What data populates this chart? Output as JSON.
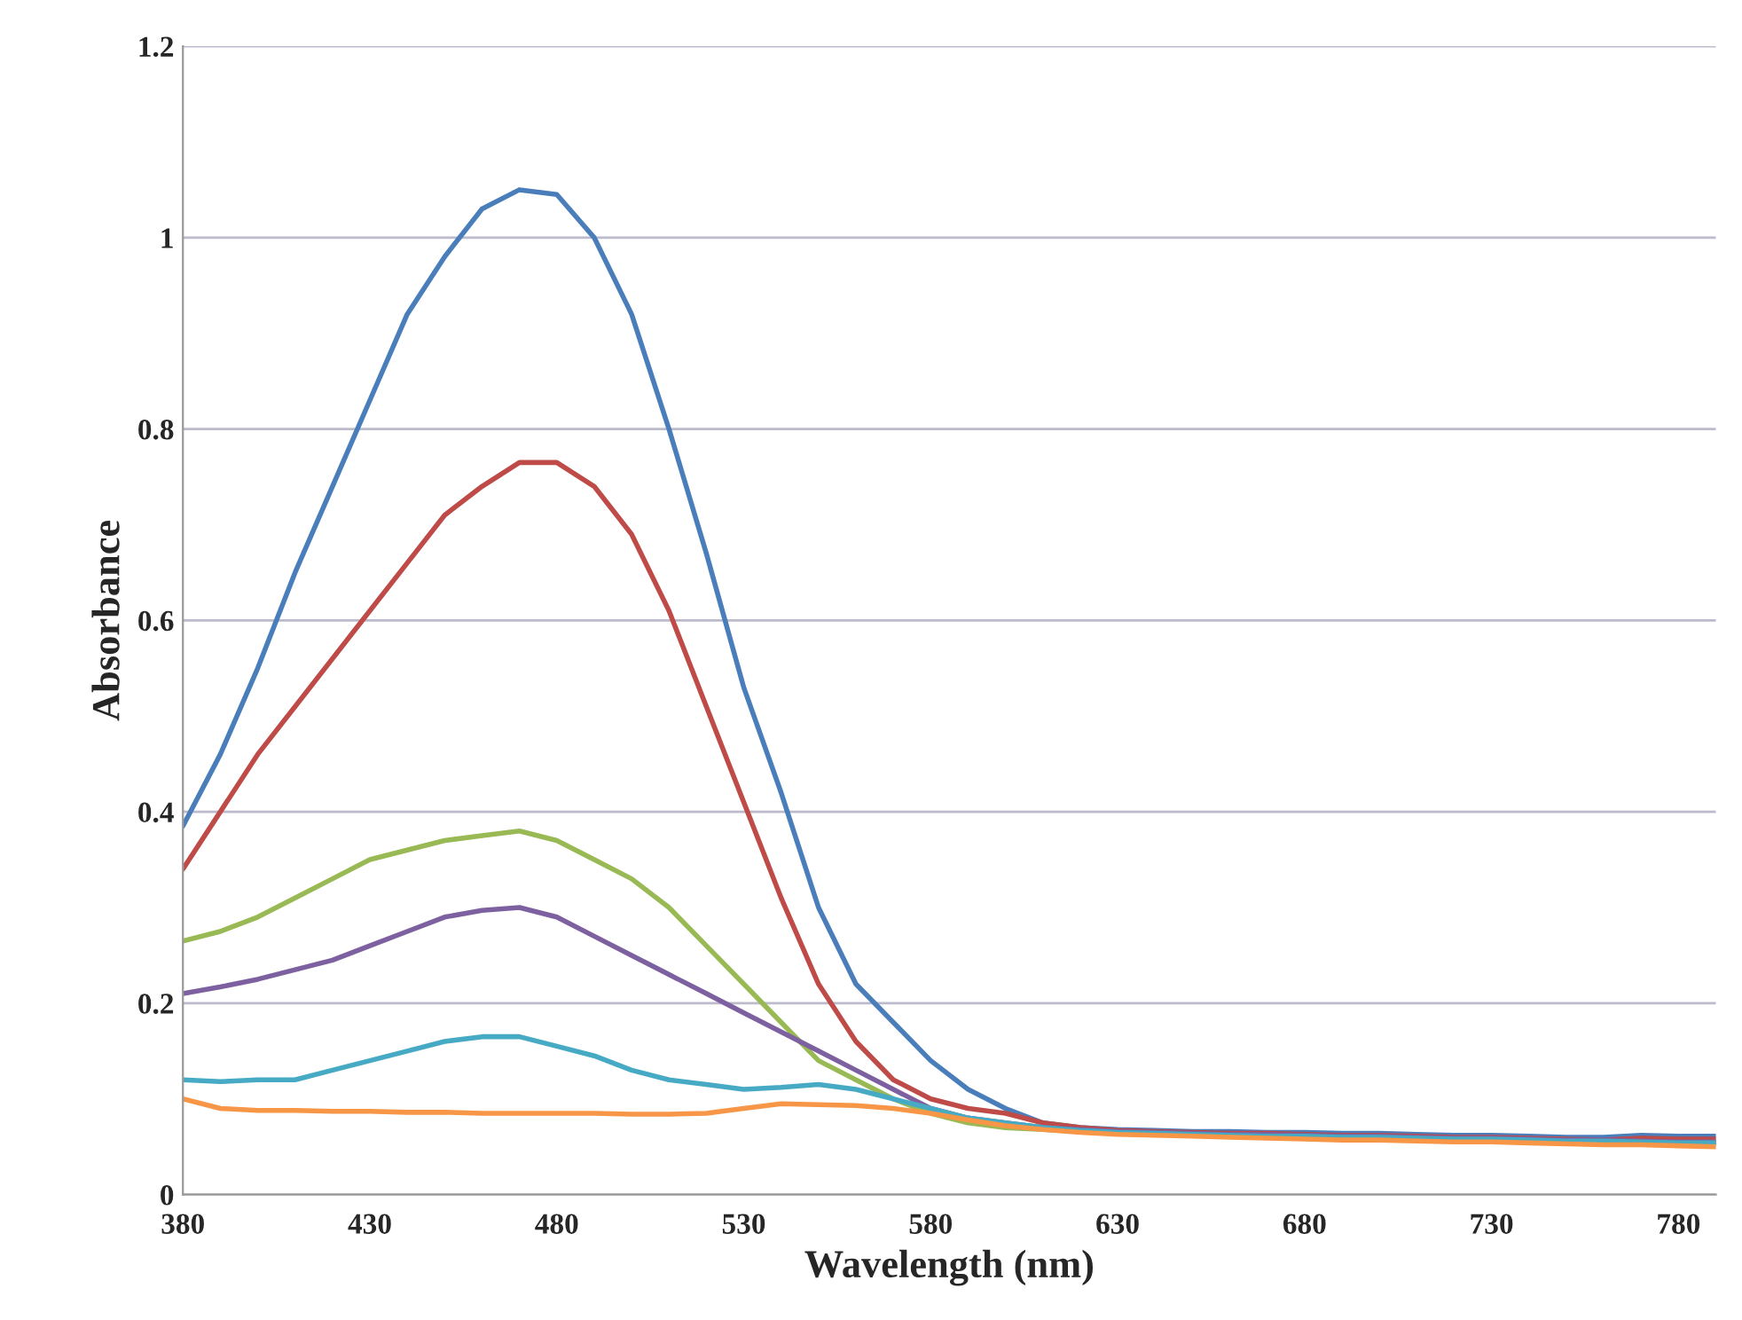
{
  "chart_data": {
    "type": "line",
    "xlabel": "Wavelength (nm)",
    "ylabel": "Absorbance",
    "x": [
      380,
      390,
      400,
      410,
      420,
      430,
      440,
      450,
      460,
      470,
      480,
      490,
      500,
      510,
      520,
      530,
      540,
      550,
      560,
      570,
      580,
      590,
      600,
      610,
      620,
      630,
      640,
      650,
      660,
      670,
      680,
      690,
      700,
      710,
      720,
      730,
      740,
      750,
      760,
      770,
      780,
      790
    ],
    "series": [
      {
        "color": "#4a7ebb",
        "values": [
          0.385,
          0.46,
          0.55,
          0.65,
          0.74,
          0.83,
          0.92,
          0.98,
          1.03,
          1.05,
          1.045,
          1.0,
          0.92,
          0.8,
          0.67,
          0.53,
          0.42,
          0.3,
          0.22,
          0.18,
          0.14,
          0.11,
          0.09,
          0.075,
          0.07,
          0.068,
          0.067,
          0.066,
          0.066,
          0.065,
          0.065,
          0.064,
          0.064,
          0.063,
          0.062,
          0.062,
          0.061,
          0.06,
          0.06,
          0.062,
          0.061,
          0.061
        ]
      },
      {
        "color": "#be4b48",
        "values": [
          0.34,
          0.4,
          0.46,
          0.51,
          0.56,
          0.61,
          0.66,
          0.71,
          0.74,
          0.765,
          0.765,
          0.74,
          0.69,
          0.61,
          0.51,
          0.41,
          0.31,
          0.22,
          0.16,
          0.12,
          0.1,
          0.09,
          0.085,
          0.075,
          0.07,
          0.067,
          0.066,
          0.065,
          0.064,
          0.064,
          0.063,
          0.062,
          0.062,
          0.061,
          0.06,
          0.06,
          0.059,
          0.058,
          0.057,
          0.059,
          0.058,
          0.058
        ]
      },
      {
        "color": "#98b954",
        "values": [
          0.265,
          0.275,
          0.29,
          0.31,
          0.33,
          0.35,
          0.36,
          0.37,
          0.375,
          0.38,
          0.37,
          0.35,
          0.33,
          0.3,
          0.26,
          0.22,
          0.18,
          0.14,
          0.12,
          0.1,
          0.085,
          0.075,
          0.07,
          0.068,
          0.066,
          0.065,
          0.064,
          0.063,
          0.062,
          0.062,
          0.061,
          0.06,
          0.06,
          0.059,
          0.058,
          0.058,
          0.057,
          0.056,
          0.056,
          0.055,
          0.054,
          0.054
        ]
      },
      {
        "color": "#7d60a0",
        "values": [
          0.21,
          0.217,
          0.225,
          0.235,
          0.245,
          0.26,
          0.275,
          0.29,
          0.297,
          0.3,
          0.29,
          0.27,
          0.25,
          0.23,
          0.21,
          0.19,
          0.17,
          0.15,
          0.13,
          0.11,
          0.09,
          0.08,
          0.075,
          0.07,
          0.068,
          0.066,
          0.065,
          0.064,
          0.063,
          0.063,
          0.062,
          0.061,
          0.061,
          0.06,
          0.059,
          0.059,
          0.058,
          0.057,
          0.057,
          0.056,
          0.055,
          0.055
        ]
      },
      {
        "color": "#46aac5",
        "values": [
          0.12,
          0.118,
          0.12,
          0.12,
          0.13,
          0.14,
          0.15,
          0.16,
          0.165,
          0.165,
          0.155,
          0.145,
          0.13,
          0.12,
          0.115,
          0.11,
          0.112,
          0.115,
          0.11,
          0.1,
          0.09,
          0.08,
          0.075,
          0.07,
          0.067,
          0.065,
          0.064,
          0.063,
          0.062,
          0.061,
          0.061,
          0.06,
          0.06,
          0.059,
          0.058,
          0.058,
          0.057,
          0.056,
          0.056,
          0.055,
          0.054,
          0.054
        ]
      },
      {
        "color": "#f79646",
        "values": [
          0.1,
          0.09,
          0.088,
          0.088,
          0.087,
          0.087,
          0.086,
          0.086,
          0.085,
          0.085,
          0.085,
          0.085,
          0.084,
          0.084,
          0.085,
          0.09,
          0.095,
          0.094,
          0.093,
          0.09,
          0.085,
          0.078,
          0.072,
          0.068,
          0.065,
          0.063,
          0.062,
          0.061,
          0.06,
          0.059,
          0.058,
          0.057,
          0.057,
          0.056,
          0.055,
          0.055,
          0.054,
          0.053,
          0.052,
          0.052,
          0.051,
          0.05
        ]
      }
    ],
    "xlim": [
      380,
      790
    ],
    "xticks": [
      380,
      430,
      480,
      530,
      580,
      630,
      680,
      730,
      780
    ],
    "ylim": [
      0,
      1.2
    ],
    "yticks": [
      0,
      0.2,
      0.4,
      0.6,
      0.8,
      1,
      1.2
    ],
    "grid": "y"
  }
}
